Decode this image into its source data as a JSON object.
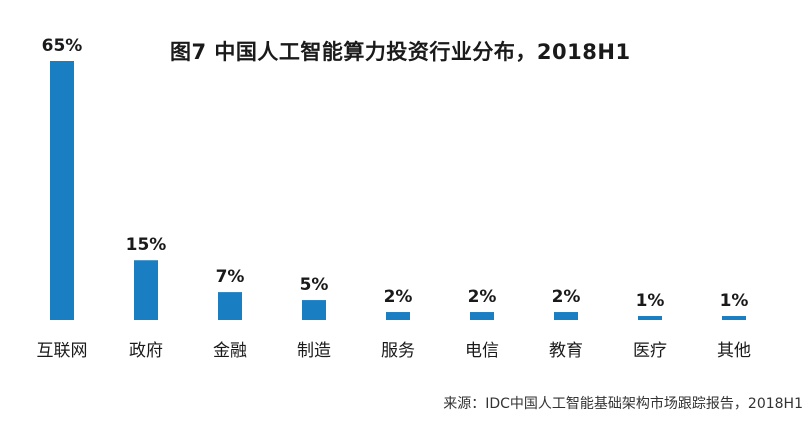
{
  "chart_data": {
    "type": "bar",
    "title": "图7 中国人工智能算力投资行业分布，2018H1",
    "source": "来源：IDC中国人工智能基础架构市场跟踪报告，2018H1",
    "categories": [
      "互联网",
      "政府",
      "金融",
      "制造",
      "服务",
      "电信",
      "教育",
      "医疗",
      "其他"
    ],
    "values": [
      65,
      15,
      7,
      5,
      2,
      2,
      2,
      1,
      1
    ],
    "value_labels": [
      "65%",
      "15%",
      "7%",
      "5%",
      "2%",
      "2%",
      "2%",
      "1%",
      "1%"
    ],
    "xlabel": "",
    "ylabel": "",
    "ylim": [
      0,
      65
    ],
    "grid": false,
    "legend": "none",
    "bar_color": "#1a7ec3"
  }
}
